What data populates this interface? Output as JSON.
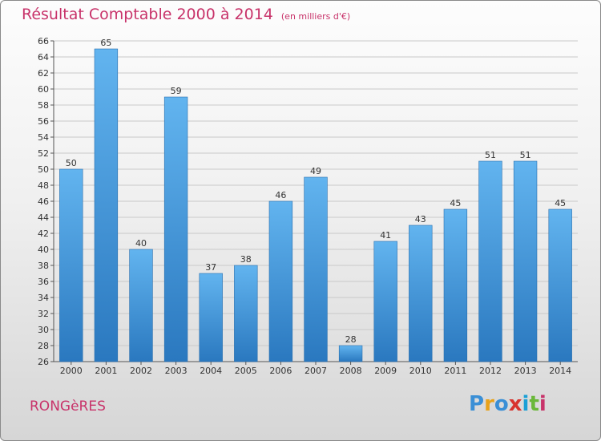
{
  "title": {
    "main": "Résultat Comptable 2000 à 2014",
    "sub": "(en milliers d'€)"
  },
  "commune": "RONGèRES",
  "logo": {
    "letters": [
      "P",
      "r",
      "o",
      "x",
      "i",
      "t",
      "i"
    ],
    "colors": [
      "#3a8fd6",
      "#e8a21a",
      "#3a8fd6",
      "#d8342f",
      "#1aa0d6",
      "#6ab83a",
      "#c8336a"
    ]
  },
  "colors": {
    "accent": "#c8336a",
    "bar_top": "#62b4ef",
    "bar_bottom": "#2a78bf",
    "grid": "#c9c9c9",
    "axis": "#555555"
  },
  "chart_data": {
    "type": "bar",
    "title": "Résultat Comptable 2000 à 2014",
    "subtitle": "(en milliers d'€)",
    "categories": [
      "2000",
      "2001",
      "2002",
      "2003",
      "2004",
      "2005",
      "2006",
      "2007",
      "2008",
      "2009",
      "2010",
      "2011",
      "2012",
      "2013",
      "2014"
    ],
    "values": [
      50,
      65,
      40,
      59,
      37,
      38,
      46,
      49,
      28,
      41,
      43,
      45,
      51,
      51,
      45
    ],
    "ylim": [
      26,
      66
    ],
    "yticks": [
      26,
      28,
      30,
      32,
      34,
      36,
      38,
      40,
      42,
      44,
      46,
      48,
      50,
      52,
      54,
      56,
      58,
      60,
      62,
      64,
      66
    ],
    "grid": true,
    "legend": "none"
  }
}
